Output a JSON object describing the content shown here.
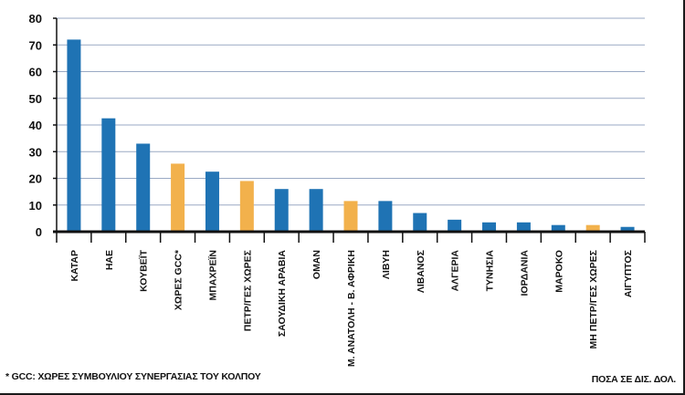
{
  "chart_data": {
    "type": "bar",
    "categories": [
      "ΚΑΤΑΡ",
      "ΗΑΕ",
      "ΚΟΥΒΕΪΤ",
      "ΧΩΡΕΣ GCC*",
      "ΜΠΑΧΡΕΪΝ",
      "ΠΕΤΡ/ΓΕΣ ΧΩΡΕΣ",
      "ΣΑΟΥΔΙΚΗ ΑΡΑΒΙΑ",
      "ΟΜΑΝ",
      "Μ. ΑΝΑΤΟΛΗ - Β. ΑΦΡΙΚΗ",
      "ΛΙΒΥΗ",
      "ΛΙΒΑΝΟΣ",
      "ΑΛΓΕΡΙΑ",
      "ΤΥΝΗΣΙΑ",
      "ΙΟΡΔΑΝΙΑ",
      "ΜΑΡΟΚΟ",
      "ΜΗ ΠΕΤΡ/ΓΕΣ ΧΩΡΕΣ",
      "ΑΙΓΥΠΤΟΣ"
    ],
    "values": [
      72,
      42.5,
      33,
      25.5,
      22.5,
      19,
      16,
      16,
      11.5,
      11.5,
      7,
      4.5,
      3.5,
      3.5,
      2.5,
      2.5,
      1.8
    ],
    "highlight": [
      false,
      false,
      false,
      true,
      false,
      true,
      false,
      false,
      true,
      false,
      false,
      false,
      false,
      false,
      false,
      true,
      false
    ],
    "colors": {
      "regular": "#1f73b4",
      "highlight": "#f2b14c",
      "grid": "#9aa9c4",
      "axis": "#111111"
    },
    "ylim": [
      0,
      80
    ],
    "yticks": [
      0,
      10,
      20,
      30,
      40,
      50,
      60,
      70,
      80
    ],
    "title": "",
    "xlabel": "",
    "ylabel": "",
    "grid": true,
    "legend": "none"
  },
  "footnote": "* GCC: ΧΩΡΕΣ ΣΥΜΒΟΥΛΙΟΥ ΣΥΝΕΡΓΑΣΙΑΣ ΤΟΥ ΚΟΛΠΟΥ",
  "units": "ΠΟΣΑ ΣΕ ΔΙΣ. ΔΟΛ."
}
